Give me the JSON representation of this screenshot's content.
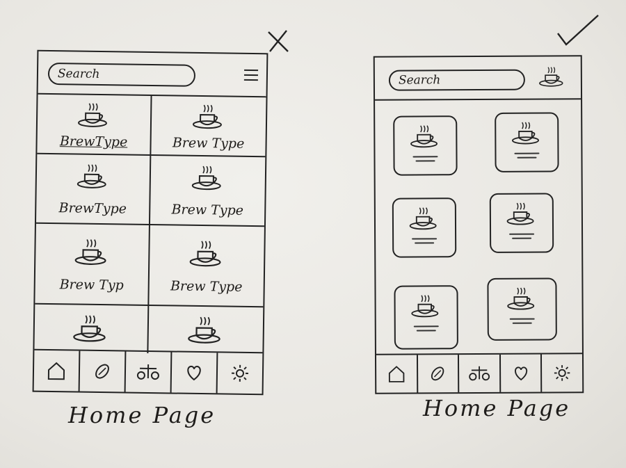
{
  "left_sketch": {
    "search": {
      "placeholder": "Search"
    },
    "header_icon": "hamburger-menu-icon",
    "tiles": [
      {
        "label": "BrewType"
      },
      {
        "label": "Brew Type"
      },
      {
        "label": "BrewType"
      },
      {
        "label": "Brew Type"
      },
      {
        "label": "Brew Typ"
      },
      {
        "label": "Brew Type"
      },
      {
        "label": ""
      },
      {
        "label": ""
      }
    ],
    "nav_icons": [
      "home-icon",
      "coffee-bean-icon",
      "scale-icon",
      "heart-icon",
      "settings-gear-icon"
    ],
    "caption": "Home Page",
    "verdict_mark": "x-mark"
  },
  "right_sketch": {
    "search": {
      "placeholder": "Search"
    },
    "header_icon": "coffee-cup-logo-icon",
    "cards": 6,
    "nav_icons": [
      "home-icon",
      "coffee-bean-icon",
      "scale-icon",
      "heart-icon",
      "settings-gear-icon"
    ],
    "caption": "Home Page",
    "verdict_mark": "check-mark"
  },
  "colors": {
    "ink": "#1e1c1a",
    "paper": "#ecebe6"
  }
}
